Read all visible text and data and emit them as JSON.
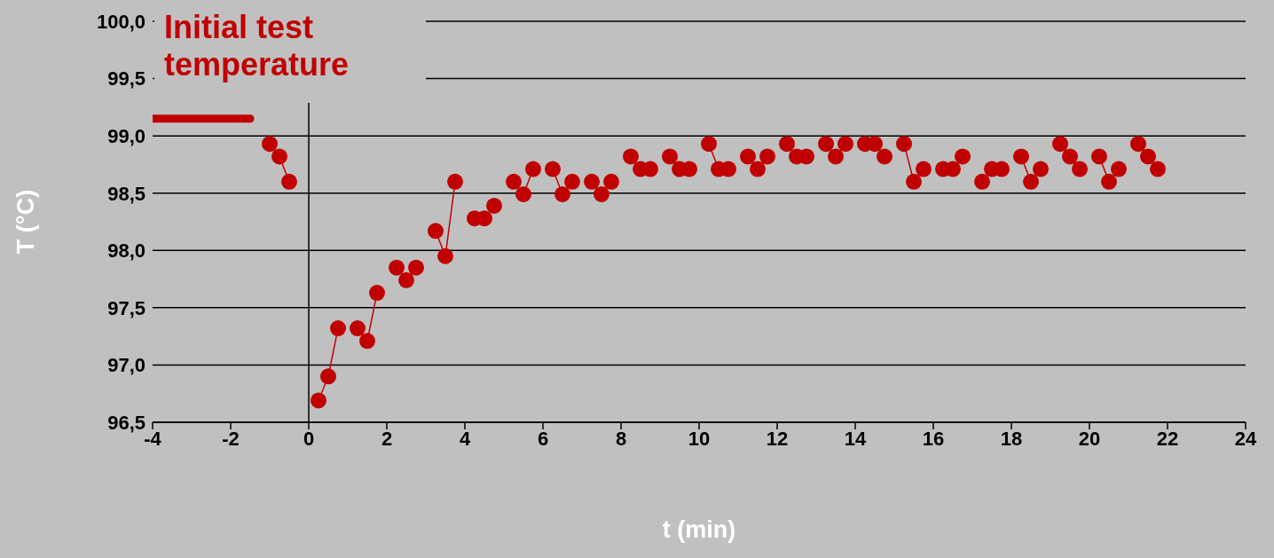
{
  "chart_data": {
    "type": "line",
    "xlabel": "t (min)",
    "ylabel": "T (°C)",
    "xlim": [
      -4,
      24
    ],
    "xticks": [
      -4,
      -2,
      0,
      2,
      4,
      6,
      8,
      10,
      12,
      14,
      16,
      18,
      20,
      22,
      24
    ],
    "ylim": [
      96.5,
      100
    ],
    "yticks": [
      {
        "value": 96.5,
        "label": "96,5"
      },
      {
        "value": 97,
        "label": "97,0"
      },
      {
        "value": 97.5,
        "label": "97,5"
      },
      {
        "value": 98,
        "label": "98,0"
      },
      {
        "value": 98.5,
        "label": "98,5"
      },
      {
        "value": 99,
        "label": "99,0"
      },
      {
        "value": 99.5,
        "label": "99,5"
      },
      {
        "value": 100,
        "label": "100,0"
      }
    ],
    "grid": "y",
    "marker": "circle",
    "line_style": "solid",
    "ref_lines": [
      {
        "axis": "x",
        "value": 0,
        "color": "#000000"
      }
    ],
    "series": [
      {
        "name": "Initial test temperature",
        "color": "#c00000",
        "marker": "none",
        "x": [
          -4,
          -1.5
        ],
        "values": [
          99.15,
          99.15
        ]
      },
      {
        "color": "#c00000",
        "x": [
          -1,
          -0.75,
          -0.5,
          0,
          0.25,
          0.5,
          0.75,
          1,
          1.25,
          1.5,
          1.75,
          2,
          2.25,
          2.5,
          2.75,
          3,
          3.25,
          3.5,
          3.75,
          4,
          4.25,
          4.5,
          4.75,
          5,
          5.25,
          5.5,
          5.75,
          6,
          6.25,
          6.5,
          6.75,
          7,
          7.25,
          7.5,
          7.75,
          8,
          8.25,
          8.5,
          8.75,
          9,
          9.25,
          9.5,
          9.75,
          10,
          10.25,
          10.5,
          10.75,
          11,
          11.25,
          11.5,
          11.75,
          12,
          12.25,
          12.5,
          12.75,
          13,
          13.25,
          13.5,
          13.75,
          14,
          14.25,
          14.5,
          14.75,
          15,
          15.25,
          15.5,
          15.75,
          16,
          16.25,
          16.5,
          16.75,
          17,
          17.25,
          17.5,
          17.75,
          18,
          18.25,
          18.5,
          18.75,
          19,
          19.25,
          19.5,
          19.75,
          20,
          20.25,
          20.5,
          20.75,
          21,
          21.25,
          21.5,
          21.75
        ],
        "values": [
          98.93,
          98.82,
          98.6,
          null,
          96.69,
          96.9,
          97.32,
          null,
          97.32,
          97.21,
          97.63,
          null,
          97.85,
          97.74,
          97.85,
          null,
          98.17,
          97.95,
          98.6,
          null,
          98.28,
          98.28,
          98.39,
          null,
          98.6,
          98.49,
          98.71,
          null,
          98.71,
          98.49,
          98.6,
          null,
          98.6,
          98.49,
          98.6,
          null,
          98.82,
          98.71,
          98.71,
          null,
          98.82,
          98.71,
          98.71,
          null,
          98.93,
          98.71,
          98.71,
          null,
          98.82,
          98.71,
          98.82,
          null,
          98.93,
          98.82,
          98.82,
          null,
          98.93,
          98.82,
          98.93,
          null,
          98.93,
          98.93,
          98.82,
          null,
          98.93,
          98.6,
          98.71,
          null,
          98.71,
          98.71,
          98.82,
          null,
          98.6,
          98.71,
          98.71,
          null,
          98.82,
          98.6,
          98.71,
          null,
          98.93,
          98.82,
          98.71,
          null,
          98.82,
          98.6,
          98.71,
          null,
          98.93,
          98.82,
          98.71
        ]
      }
    ]
  }
}
